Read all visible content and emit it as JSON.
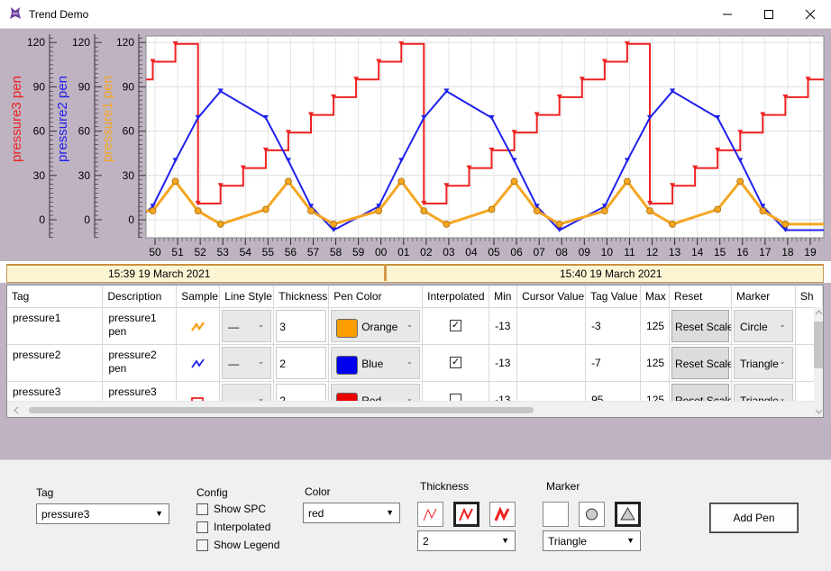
{
  "window": {
    "title": "Trend Demo"
  },
  "chart": {
    "axes": [
      {
        "label": "pressure3 pen",
        "color": "#ee2222",
        "ticks": [
          "120",
          "90",
          "60",
          "30",
          "0"
        ]
      },
      {
        "label": "pressure2 pen",
        "color": "#2020ee",
        "ticks": [
          "120",
          "90",
          "60",
          "30",
          "0"
        ]
      },
      {
        "label": "pressure1 pen",
        "color": "#f5a623",
        "ticks": [
          "120",
          "90",
          "60",
          "30",
          "0"
        ]
      }
    ],
    "x_ticks": [
      "50",
      "51",
      "52",
      "53",
      "54",
      "55",
      "56",
      "57",
      "58",
      "59",
      "00",
      "01",
      "02",
      "03",
      "04",
      "05",
      "06",
      "07",
      "08",
      "09",
      "10",
      "11",
      "12",
      "13",
      "14",
      "15",
      "16",
      "17",
      "18",
      "19"
    ],
    "timebar": {
      "left": "15:39 19 March 2021",
      "right": "15:40 19 March 2021"
    }
  },
  "chart_data": {
    "type": "line",
    "title": "",
    "xlabel": "",
    "ylim": [
      -13,
      125
    ],
    "x": [
      "50",
      "51",
      "52",
      "53",
      "54",
      "55",
      "56",
      "57",
      "58",
      "59",
      "00",
      "01",
      "02",
      "03",
      "04",
      "05",
      "06",
      "07",
      "08",
      "09",
      "10",
      "11",
      "12",
      "13",
      "14",
      "15",
      "16",
      "17",
      "18",
      "19"
    ],
    "series": [
      {
        "name": "pressure3 pen",
        "color": "#ee2222",
        "style": "step",
        "marker": "triangle-down",
        "points": [
          [
            49.6,
            95
          ],
          [
            49.9,
            95
          ],
          [
            49.9,
            107
          ],
          [
            50.9,
            107
          ],
          [
            50.9,
            119
          ],
          [
            51.9,
            119
          ],
          [
            51.9,
            11
          ],
          [
            52.9,
            11
          ],
          [
            52.9,
            23
          ],
          [
            53.9,
            23
          ],
          [
            53.9,
            35
          ],
          [
            54.9,
            35
          ],
          [
            54.9,
            47
          ],
          [
            55.9,
            47
          ],
          [
            55.9,
            59
          ],
          [
            56.9,
            59
          ],
          [
            56.9,
            71
          ],
          [
            57.9,
            71
          ],
          [
            57.9,
            83
          ],
          [
            58.9,
            83
          ],
          [
            58.9,
            95
          ],
          [
            59.9,
            95
          ],
          [
            59.9,
            107
          ],
          [
            60.9,
            107
          ],
          [
            60.9,
            119
          ],
          [
            61.9,
            119
          ],
          [
            61.9,
            11
          ],
          [
            62.9,
            11
          ],
          [
            62.9,
            23
          ],
          [
            63.9,
            23
          ],
          [
            63.9,
            35
          ],
          [
            64.9,
            35
          ],
          [
            64.9,
            47
          ],
          [
            65.9,
            47
          ],
          [
            65.9,
            59
          ],
          [
            66.9,
            59
          ],
          [
            66.9,
            71
          ],
          [
            67.9,
            71
          ],
          [
            67.9,
            83
          ],
          [
            68.9,
            83
          ],
          [
            68.9,
            95
          ],
          [
            69.9,
            95
          ],
          [
            69.9,
            107
          ],
          [
            70.9,
            107
          ],
          [
            70.9,
            119
          ],
          [
            71.9,
            119
          ],
          [
            71.9,
            11
          ],
          [
            72.9,
            11
          ],
          [
            72.9,
            23
          ],
          [
            73.9,
            23
          ],
          [
            73.9,
            35
          ],
          [
            74.9,
            35
          ],
          [
            74.9,
            47
          ],
          [
            75.9,
            47
          ],
          [
            75.9,
            59
          ],
          [
            76.9,
            59
          ],
          [
            76.9,
            71
          ],
          [
            77.9,
            71
          ],
          [
            77.9,
            83
          ],
          [
            78.9,
            83
          ],
          [
            78.9,
            95
          ],
          [
            79.6,
            95
          ]
        ]
      },
      {
        "name": "pressure2 pen",
        "color": "#2020ee",
        "style": "line",
        "marker": "triangle-down",
        "points": [
          [
            49.6,
            5
          ],
          [
            49.9,
            9
          ],
          [
            50.9,
            40
          ],
          [
            51.9,
            69
          ],
          [
            52.9,
            87
          ],
          [
            54.9,
            69
          ],
          [
            55.9,
            40
          ],
          [
            56.9,
            9
          ],
          [
            57.9,
            -7
          ],
          [
            59.9,
            9
          ],
          [
            60.9,
            40
          ],
          [
            61.9,
            69
          ],
          [
            62.9,
            87
          ],
          [
            64.9,
            69
          ],
          [
            65.9,
            40
          ],
          [
            66.9,
            9
          ],
          [
            67.9,
            -7
          ],
          [
            69.9,
            9
          ],
          [
            70.9,
            40
          ],
          [
            71.9,
            69
          ],
          [
            72.9,
            87
          ],
          [
            74.9,
            69
          ],
          [
            75.9,
            40
          ],
          [
            76.9,
            9
          ],
          [
            77.9,
            -7
          ],
          [
            79.6,
            -7
          ]
        ]
      },
      {
        "name": "pressure1 pen",
        "color": "#f5a623",
        "style": "line",
        "marker": "circle",
        "points": [
          [
            49.6,
            6
          ],
          [
            49.9,
            6
          ],
          [
            50.9,
            26
          ],
          [
            51.9,
            6
          ],
          [
            52.9,
            -3
          ],
          [
            54.9,
            7
          ],
          [
            55.9,
            26
          ],
          [
            56.9,
            6
          ],
          [
            57.9,
            -3
          ],
          [
            59.9,
            6
          ],
          [
            60.9,
            26
          ],
          [
            61.9,
            6
          ],
          [
            62.9,
            -3
          ],
          [
            64.9,
            7
          ],
          [
            65.9,
            26
          ],
          [
            66.9,
            6
          ],
          [
            67.9,
            -3
          ],
          [
            69.9,
            6
          ],
          [
            70.9,
            26
          ],
          [
            71.9,
            6
          ],
          [
            72.9,
            -3
          ],
          [
            74.9,
            7
          ],
          [
            75.9,
            26
          ],
          [
            76.9,
            6
          ],
          [
            77.9,
            -3
          ],
          [
            79.6,
            -3
          ]
        ]
      }
    ]
  },
  "grid": {
    "columns": [
      "Tag",
      "Description",
      "Sample",
      "Line Style",
      "Thickness",
      "Pen Color",
      "Interpolated",
      "Min",
      "Cursor Value",
      "Tag Value",
      "Max",
      "Reset",
      "Marker",
      "Sh"
    ],
    "rows": [
      {
        "tag": "pressure1",
        "description": "pressure1 pen",
        "sample_color": "#f5a623",
        "line_style": "—",
        "thickness": "3",
        "pen_color_name": "Orange",
        "pen_color": "#ff9e00",
        "interpolated": true,
        "min": "-13",
        "cursor_value": "",
        "tag_value": "-3",
        "max": "125",
        "reset": "Reset Scale",
        "marker": "Circle"
      },
      {
        "tag": "pressure2",
        "description": "pressure2 pen",
        "sample_color": "#2020ee",
        "line_style": "—",
        "thickness": "2",
        "pen_color_name": "Blue",
        "pen_color": "#0000ee",
        "interpolated": true,
        "min": "-13",
        "cursor_value": "",
        "tag_value": "-7",
        "max": "125",
        "reset": "Reset Scale",
        "marker": "Triangle"
      },
      {
        "tag": "pressure3",
        "description": "pressure3 pen",
        "sample_color": "#ee2222",
        "line_style": "—",
        "thickness": "2",
        "pen_color_name": "Red",
        "pen_color": "#ee0000",
        "interpolated": false,
        "min": "-13",
        "cursor_value": "",
        "tag_value": "95",
        "max": "125",
        "reset": "Reset Scale",
        "marker": "Triangle"
      }
    ]
  },
  "panel": {
    "tag_label": "Tag",
    "tag_value": "pressure3",
    "config_label": "Config",
    "checkboxes": [
      "Show SPC",
      "Interpolated",
      "Show Legend"
    ],
    "color_label": "Color",
    "color_value": "red",
    "thickness_label": "Thickness",
    "thickness_value": "2",
    "marker_label": "Marker",
    "marker_value": "Triangle",
    "add_button": "Add Pen"
  }
}
